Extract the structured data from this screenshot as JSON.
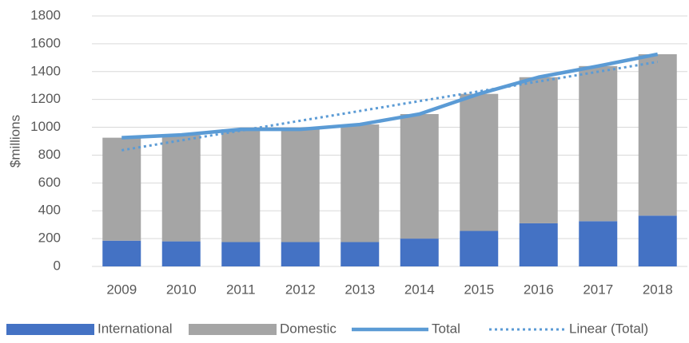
{
  "chart_data": {
    "type": "bar",
    "stacked": true,
    "y_label": "$millions",
    "categories": [
      "2009",
      "2010",
      "2011",
      "2012",
      "2013",
      "2014",
      "2015",
      "2016",
      "2017",
      "2018"
    ],
    "series": [
      {
        "name": "International",
        "type": "bar",
        "color": "#4472c4",
        "values": [
          185,
          180,
          175,
          175,
          175,
          200,
          255,
          310,
          325,
          365
        ]
      },
      {
        "name": "Domestic",
        "type": "bar",
        "color": "#a5a5a5",
        "values": [
          740,
          765,
          810,
          810,
          845,
          895,
          985,
          1050,
          1115,
          1160
        ]
      },
      {
        "name": "Total",
        "type": "line",
        "color": "#5b9bd5",
        "values": [
          925,
          945,
          985,
          985,
          1020,
          1095,
          1240,
          1360,
          1440,
          1525
        ]
      },
      {
        "name": "Linear (Total)",
        "type": "line",
        "dashed": true,
        "color": "#5b9bd5",
        "values": [
          835,
          906,
          976,
          1047,
          1117,
          1188,
          1258,
          1329,
          1399,
          1470
        ]
      }
    ],
    "ylim": [
      0,
      1800
    ],
    "yticks": [
      0,
      200,
      400,
      600,
      800,
      1000,
      1200,
      1400,
      1600,
      1800
    ],
    "grid": true,
    "legend": "bottom"
  }
}
